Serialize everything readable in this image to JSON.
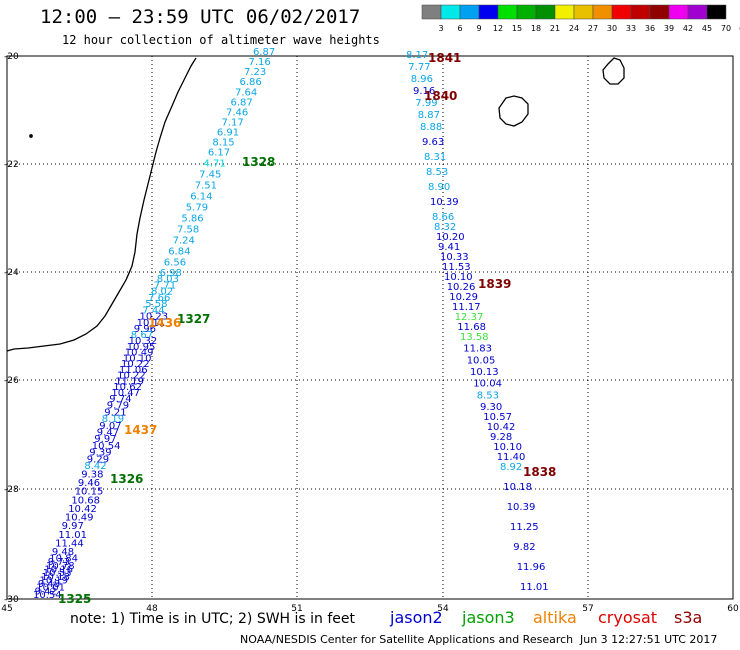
{
  "header": {
    "title": "12:00 – 23:59 UTC 06/02/2017",
    "subtitle": "12 hour collection of altimeter wave heights"
  },
  "color_scale": {
    "labels": [
      "3",
      "6",
      "9",
      "12",
      "15",
      "18",
      "21",
      "24",
      "27",
      "30",
      "33",
      "36",
      "39",
      "42",
      "45",
      "70",
      "(ft)"
    ],
    "colors": [
      "#7f7f7f",
      "#00e8e8",
      "#00a0f0",
      "#0000f0",
      "#00e000",
      "#00b000",
      "#009000",
      "#f0f000",
      "#e8c000",
      "#f09000",
      "#f00000",
      "#c00000",
      "#900000",
      "#f000f0",
      "#a000d0",
      "#000000"
    ]
  },
  "axes": {
    "lon_labels": [
      "45",
      "48",
      "51",
      "54",
      "57",
      "60"
    ],
    "lat_labels": [
      "-20",
      "-22",
      "-24",
      "-26",
      "-28",
      "-30"
    ]
  },
  "tracks": [
    {
      "name": "track-west",
      "points": [
        {
          "v": "6.87",
          "c": "#0aa6e6"
        },
        {
          "v": "7.16",
          "c": "#0aa6e6"
        },
        {
          "v": "7.23",
          "c": "#0aa6e6"
        },
        {
          "v": "6.86",
          "c": "#0aa6e6"
        },
        {
          "v": "7.64",
          "c": "#0aa6e6"
        },
        {
          "v": "6.87",
          "c": "#0aa6e6"
        },
        {
          "v": "7.46",
          "c": "#0aa6e6"
        },
        {
          "v": "7.17",
          "c": "#0aa6e6"
        },
        {
          "v": "6.91",
          "c": "#0aa6e6"
        },
        {
          "v": "8.15",
          "c": "#0aa6e6"
        },
        {
          "v": "6.17",
          "c": "#0aa6e6"
        },
        {
          "v": "4.71",
          "c": "#00d8e0"
        },
        {
          "v": "7.45",
          "c": "#0aa6e6"
        },
        {
          "v": "7.51",
          "c": "#0aa6e6"
        },
        {
          "v": "6.14",
          "c": "#0aa6e6"
        },
        {
          "v": "5.79",
          "c": "#0aa6e6"
        },
        {
          "v": "5.86",
          "c": "#0aa6e6"
        },
        {
          "v": "7.58",
          "c": "#0aa6e6"
        },
        {
          "v": "7.24",
          "c": "#0aa6e6"
        },
        {
          "v": "6.84",
          "c": "#0aa6e6"
        },
        {
          "v": "6.56",
          "c": "#0aa6e6"
        },
        {
          "v": "6.98",
          "c": "#0aa6e6"
        },
        {
          "v": "8.03",
          "c": "#0aa6e6"
        },
        {
          "v": "7.71",
          "c": "#0aa6e6"
        },
        {
          "v": "8.02",
          "c": "#0aa6e6"
        },
        {
          "v": "7.66",
          "c": "#0aa6e6"
        },
        {
          "v": "5.58",
          "c": "#0aa6e6"
        },
        {
          "v": "7.44",
          "c": "#0aa6e6"
        },
        {
          "v": "10.23",
          "c": "#0000d0"
        },
        {
          "v": "10.11",
          "c": "#0000d0"
        },
        {
          "v": "9.96",
          "c": "#0000d0"
        },
        {
          "v": "8.67",
          "c": "#0aa6e6"
        },
        {
          "v": "10.32",
          "c": "#0000d0"
        },
        {
          "v": "10.95",
          "c": "#0000d0"
        },
        {
          "v": "10.49",
          "c": "#0000d0"
        },
        {
          "v": "10.10",
          "c": "#0000d0"
        },
        {
          "v": "10.22",
          "c": "#0000d0"
        },
        {
          "v": "11.06",
          "c": "#0000d0"
        },
        {
          "v": "10.22",
          "c": "#0000d0"
        },
        {
          "v": "11.19",
          "c": "#0000d0"
        },
        {
          "v": "10.62",
          "c": "#0000d0"
        },
        {
          "v": "10.47",
          "c": "#0000d0"
        },
        {
          "v": "9.74",
          "c": "#0000d0"
        },
        {
          "v": "9.79",
          "c": "#0000d0"
        },
        {
          "v": "9.21",
          "c": "#0000d0"
        },
        {
          "v": "8.19",
          "c": "#0aa6e6"
        },
        {
          "v": "9.07",
          "c": "#0000d0"
        },
        {
          "v": "9.47",
          "c": "#0000d0"
        },
        {
          "v": "9.97",
          "c": "#0000d0"
        },
        {
          "v": "10.54",
          "c": "#0000d0"
        },
        {
          "v": "9.39",
          "c": "#0000d0"
        },
        {
          "v": "9.29",
          "c": "#0000d0"
        },
        {
          "v": "8.42",
          "c": "#0aa6e6"
        },
        {
          "v": "9.38",
          "c": "#0000d0"
        },
        {
          "v": "9.46",
          "c": "#0000d0"
        },
        {
          "v": "10.15",
          "c": "#0000d0"
        },
        {
          "v": "10.68",
          "c": "#0000d0"
        },
        {
          "v": "10.42",
          "c": "#0000d0"
        },
        {
          "v": "10.49",
          "c": "#0000d0"
        },
        {
          "v": "9.97",
          "c": "#0000d0"
        },
        {
          "v": "11.01",
          "c": "#0000d0"
        },
        {
          "v": "11.44",
          "c": "#0000d0"
        },
        {
          "v": "9.48",
          "c": "#0000d0"
        },
        {
          "v": "10.84",
          "c": "#0000d0"
        },
        {
          "v": "9.73",
          "c": "#0000d0"
        },
        {
          "v": "10.78",
          "c": "#0000d0"
        },
        {
          "v": "10.16",
          "c": "#0000d0"
        },
        {
          "v": "10.53",
          "c": "#0000d0"
        },
        {
          "v": "10.18",
          "c": "#0000d0"
        },
        {
          "v": "10.19",
          "c": "#0000d0"
        },
        {
          "v": "9.48",
          "c": "#0000d0"
        },
        {
          "v": "10.01",
          "c": "#0000d0"
        },
        {
          "v": "9.42",
          "c": "#0000d0"
        },
        {
          "v": "10.54",
          "c": "#0000d0"
        }
      ]
    },
    {
      "name": "track-east",
      "points": [
        {
          "v": "8.17",
          "c": "#0aa6e6"
        },
        {
          "v": "7.77",
          "c": "#0aa6e6"
        },
        {
          "v": "8.96",
          "c": "#0aa6e6"
        },
        {
          "v": "9.16",
          "c": "#0000d0"
        },
        {
          "v": "7.99",
          "c": "#0aa6e6"
        },
        {
          "v": "8.87",
          "c": "#0aa6e6"
        },
        {
          "v": "8.88",
          "c": "#0aa6e6"
        },
        {
          "v": "9.63",
          "c": "#0000d0"
        },
        {
          "v": "8.31",
          "c": "#0aa6e6"
        },
        {
          "v": "8.53",
          "c": "#0aa6e6"
        },
        {
          "v": "8.90",
          "c": "#0aa6e6"
        },
        {
          "v": "10.39",
          "c": "#0000d0"
        },
        {
          "v": "8.66",
          "c": "#0aa6e6"
        },
        {
          "v": "8.32",
          "c": "#0aa6e6"
        },
        {
          "v": "10.20",
          "c": "#0000d0"
        },
        {
          "v": "9.41",
          "c": "#0000d0"
        },
        {
          "v": "10.33",
          "c": "#0000d0"
        },
        {
          "v": "11.53",
          "c": "#0000d0"
        },
        {
          "v": "10.10",
          "c": "#0000d0"
        },
        {
          "v": "10.26",
          "c": "#0000d0"
        },
        {
          "v": "10.29",
          "c": "#0000d0"
        },
        {
          "v": "11.17",
          "c": "#0000d0"
        },
        {
          "v": "12.37",
          "c": "#40e040"
        },
        {
          "v": "11.68",
          "c": "#0000d0"
        },
        {
          "v": "13.58",
          "c": "#40e040"
        },
        {
          "v": "11.83",
          "c": "#0000d0"
        },
        {
          "v": "10.05",
          "c": "#0000d0"
        },
        {
          "v": "10.13",
          "c": "#0000d0"
        },
        {
          "v": "10.04",
          "c": "#0000d0"
        },
        {
          "v": "8.53",
          "c": "#0aa6e6"
        },
        {
          "v": "9.30",
          "c": "#0000d0"
        },
        {
          "v": "10.57",
          "c": "#0000d0"
        },
        {
          "v": "10.42",
          "c": "#0000d0"
        },
        {
          "v": "9.28",
          "c": "#0000d0"
        },
        {
          "v": "10.10",
          "c": "#0000d0"
        },
        {
          "v": "11.40",
          "c": "#0000d0"
        },
        {
          "v": "8.92",
          "c": "#0aa6e6"
        },
        {
          "v": "10.18",
          "c": "#0000d0"
        },
        {
          "v": "10.39",
          "c": "#0000d0"
        },
        {
          "v": "11.25",
          "c": "#0000d0"
        },
        {
          "v": "9.82",
          "c": "#0000d0"
        },
        {
          "v": "11.96",
          "c": "#0000d0"
        },
        {
          "v": "11.01",
          "c": "#0000d0"
        }
      ]
    }
  ],
  "pass_times": [
    {
      "t": "1841",
      "c": "#800000"
    },
    {
      "t": "1840",
      "c": "#800000"
    },
    {
      "t": "1328",
      "c": "#007000"
    },
    {
      "t": "1839",
      "c": "#800000"
    },
    {
      "t": "1327",
      "c": "#007000"
    },
    {
      "t": "1436",
      "c": "#f08000"
    },
    {
      "t": "1437",
      "c": "#f08000"
    },
    {
      "t": "1326",
      "c": "#007000"
    },
    {
      "t": "1838",
      "c": "#800000"
    },
    {
      "t": "1325",
      "c": "#007000"
    }
  ],
  "legend": {
    "jason2": "jason2",
    "jason3": "jason3",
    "altika": "altika",
    "cryosat": "cryosat",
    "s3a": "s3a",
    "jason2_color": "#0000d0",
    "jason3_color": "#00a000",
    "altika_color": "#f08000",
    "cryosat_color": "#e00000",
    "s3a_color": "#900000"
  },
  "footer": {
    "note": "note:  1) Time is in UTC;  2) SWH is in feet",
    "credit": "NOAA/NESDIS Center for Satellite Applications and Research",
    "timestamp": "Jun  3 12:27:51 UTC 2017"
  }
}
